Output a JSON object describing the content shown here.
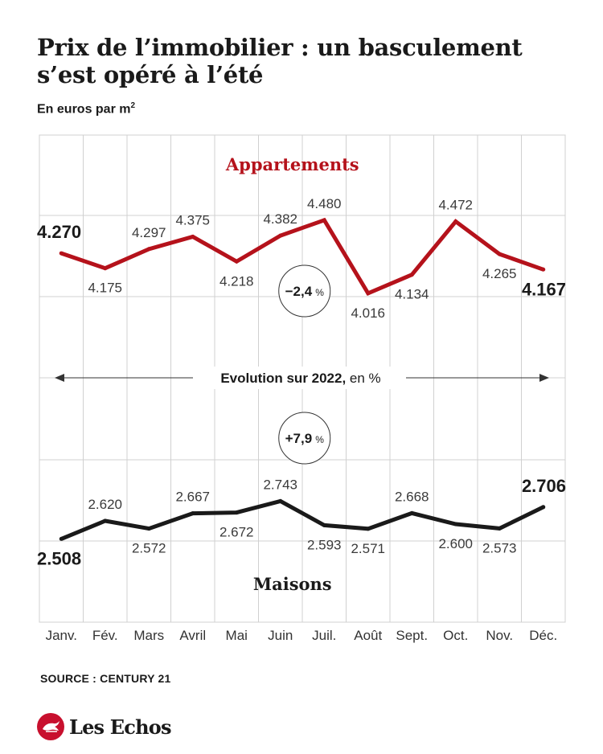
{
  "title": "Prix de l’immobilier : un basculement s’est opéré à l’été",
  "subtitle": "En euros par m",
  "subtitle_sup": "2",
  "source": "SOURCE : CENTURY 21",
  "logo": {
    "text": "Les Echos",
    "icon": "les-echos-logo-icon",
    "color": "#c8102e"
  },
  "colors": {
    "appartements": "#b5121b",
    "maisons": "#1a1a1a",
    "grid": "#d0d0d0"
  },
  "chart_data": {
    "type": "line",
    "categories": [
      "Janv.",
      "Fév.",
      "Mars",
      "Avril",
      "Mai",
      "Juin",
      "Juil.",
      "Août",
      "Sept.",
      "Oct.",
      "Nov.",
      "Déc."
    ],
    "series": [
      {
        "name": "Appartements",
        "values": [
          4270,
          4175,
          4297,
          4375,
          4218,
          4382,
          4480,
          4016,
          4134,
          4472,
          4265,
          4167
        ],
        "labels": [
          "4.270",
          "4.175",
          "4.297",
          "4.375",
          "4.218",
          "4.382",
          "4.480",
          "4.016",
          "4.134",
          "4.472",
          "4.265",
          "4.167"
        ],
        "evolution": {
          "sign": "−",
          "value": "2,4",
          "unit": "%"
        }
      },
      {
        "name": "Maisons",
        "values": [
          2508,
          2620,
          2572,
          2667,
          2672,
          2743,
          2593,
          2571,
          2668,
          2600,
          2573,
          2706
        ],
        "labels": [
          "2.508",
          "2.620",
          "2.572",
          "2.667",
          "2.672",
          "2.743",
          "2.593",
          "2.571",
          "2.668",
          "2.600",
          "2.573",
          "2.706"
        ],
        "evolution": {
          "sign": "+",
          "value": "7,9",
          "unit": "%"
        }
      }
    ],
    "evolution_label": {
      "bold": "Evolution sur 2022,",
      "rest": " en %"
    },
    "grid": true
  }
}
